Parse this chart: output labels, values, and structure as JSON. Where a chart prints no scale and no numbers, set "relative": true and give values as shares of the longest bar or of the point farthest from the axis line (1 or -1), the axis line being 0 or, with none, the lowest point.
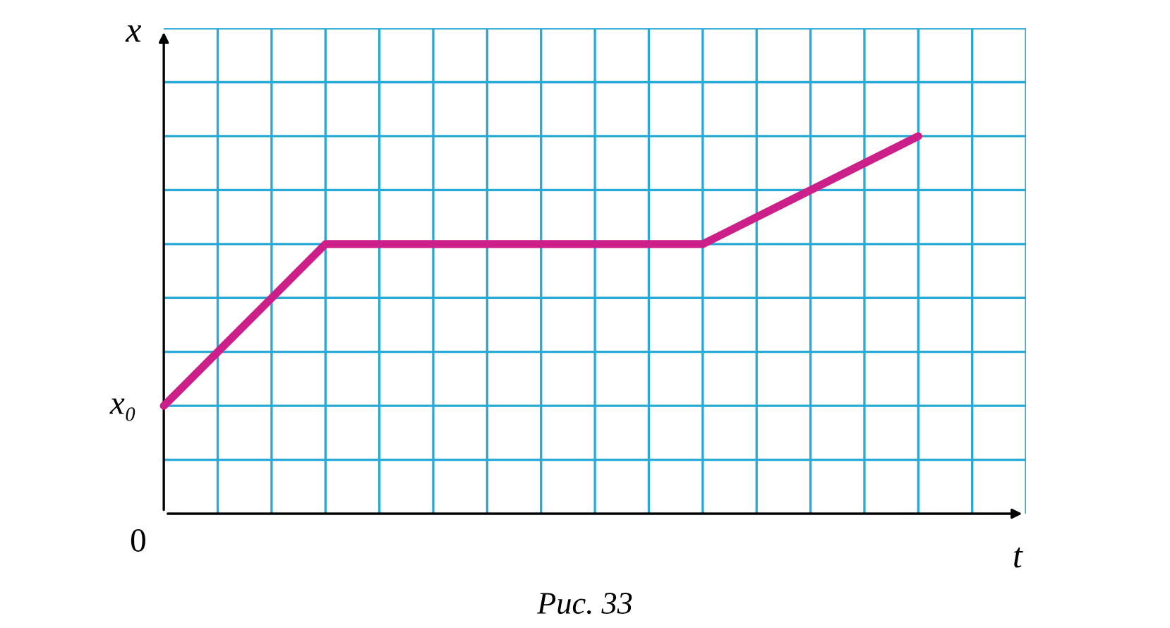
{
  "chart_data": {
    "type": "line",
    "relative": true,
    "xlabel": "t",
    "ylabel": "x",
    "categories": [
      null,
      null,
      null,
      null,
      null,
      null,
      null,
      null,
      null,
      null,
      null,
      null,
      null,
      null,
      null,
      null,
      null
    ],
    "series": [
      {
        "color": "#cc1f8a",
        "values": [
          0.2857,
          0.4286,
          0.5714,
          0.7143,
          0.7143,
          0.7143,
          0.7143,
          0.7143,
          0.7143,
          0.7143,
          0.7143,
          0.7857,
          0.8571,
          0.9286,
          1,
          null,
          null
        ]
      }
    ],
    "grid": true,
    "marker": "none",
    "line_style": "solid",
    "annotations": [
      "0",
      "x₀",
      "Рис. 33"
    ]
  }
}
